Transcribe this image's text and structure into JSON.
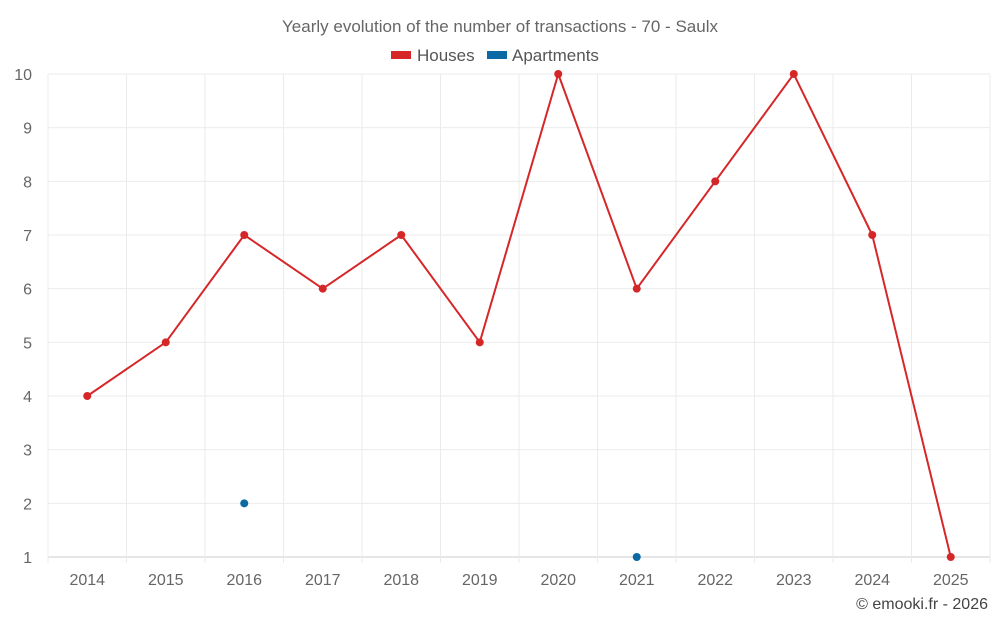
{
  "chart_data": {
    "type": "line",
    "title": "Yearly evolution of the number of transactions - 70 - Saulx",
    "categories": [
      "2014",
      "2015",
      "2016",
      "2017",
      "2018",
      "2019",
      "2020",
      "2021",
      "2022",
      "2023",
      "2024",
      "2025"
    ],
    "ylim": [
      1,
      10
    ],
    "yticks": [
      1,
      2,
      3,
      4,
      5,
      6,
      7,
      8,
      9,
      10
    ],
    "grid": true,
    "legend_position": "top-center",
    "series": [
      {
        "name": "Houses",
        "color": "#d62728",
        "values": [
          4,
          5,
          7,
          6,
          7,
          5,
          10,
          6,
          8,
          10,
          7,
          1
        ]
      },
      {
        "name": "Apartments",
        "color": "#0b69a3",
        "values": [
          null,
          null,
          2,
          null,
          null,
          null,
          null,
          1,
          null,
          null,
          null,
          null
        ]
      }
    ]
  },
  "credit": "© emooki.fr - 2026"
}
